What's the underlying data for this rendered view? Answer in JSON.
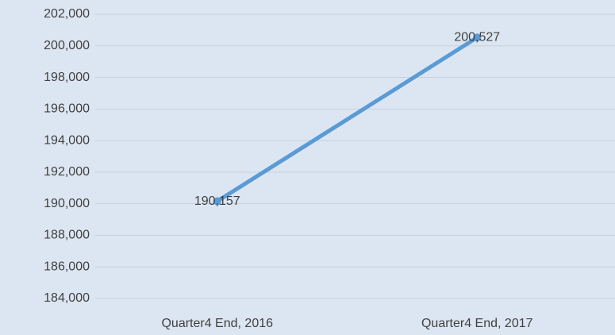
{
  "chart_data": {
    "type": "line",
    "categories": [
      "Quarter4 End, 2016",
      "Quarter4 End, 2017"
    ],
    "series": [
      {
        "name": null,
        "color": "#5b9bd5",
        "values": [
          190157,
          200527
        ],
        "value_labels": [
          "190,157",
          "200,527"
        ]
      }
    ],
    "ylim": [
      184000,
      202000
    ],
    "yticks": [
      {
        "value": 184000,
        "label": "184,000"
      },
      {
        "value": 186000,
        "label": "186,000"
      },
      {
        "value": 188000,
        "label": "188,000"
      },
      {
        "value": 190000,
        "label": "190,000"
      },
      {
        "value": 192000,
        "label": "192,000"
      },
      {
        "value": 194000,
        "label": "194,000"
      },
      {
        "value": 196000,
        "label": "196,000"
      },
      {
        "value": 198000,
        "label": "198,000"
      },
      {
        "value": 200000,
        "label": "200,000"
      },
      {
        "value": 202000,
        "label": "202,000"
      }
    ],
    "grid": true
  }
}
